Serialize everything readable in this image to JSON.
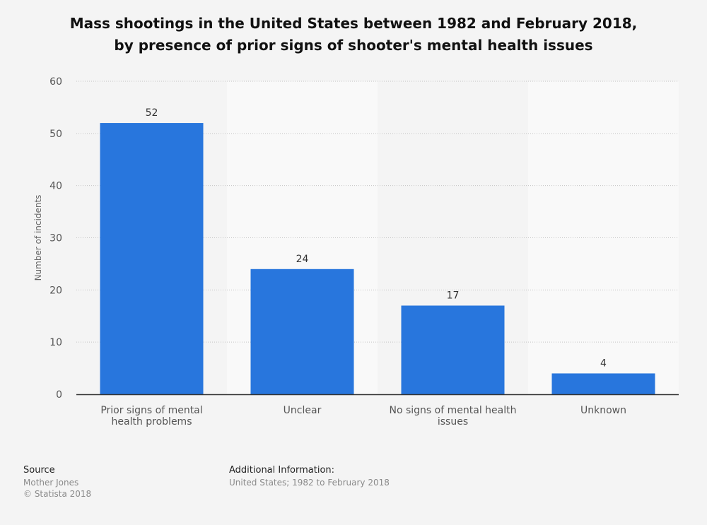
{
  "chart_data": {
    "type": "bar",
    "title_lines": [
      "Mass shootings in the United States between 1982 and February 2018,",
      "by presence of prior signs of shooter's mental health issues"
    ],
    "ylabel": "Number of incidents",
    "xlabel": "",
    "ylim": [
      0,
      60
    ],
    "yticks": [
      0,
      10,
      20,
      30,
      40,
      50,
      60
    ],
    "categories": [
      [
        "Prior signs of mental",
        "health problems"
      ],
      [
        "Unclear"
      ],
      [
        "No signs of mental health",
        "issues"
      ],
      [
        "Unknown"
      ]
    ],
    "values": [
      52,
      24,
      17,
      4
    ],
    "bar_color": "#2876dd",
    "grid": true,
    "legend": "none"
  },
  "footer": {
    "source_heading": "Source",
    "source_lines": [
      "Mother Jones",
      "© Statista 2018"
    ],
    "additional_heading": "Additional Information:",
    "additional_text": "United States; 1982 to February 2018"
  }
}
